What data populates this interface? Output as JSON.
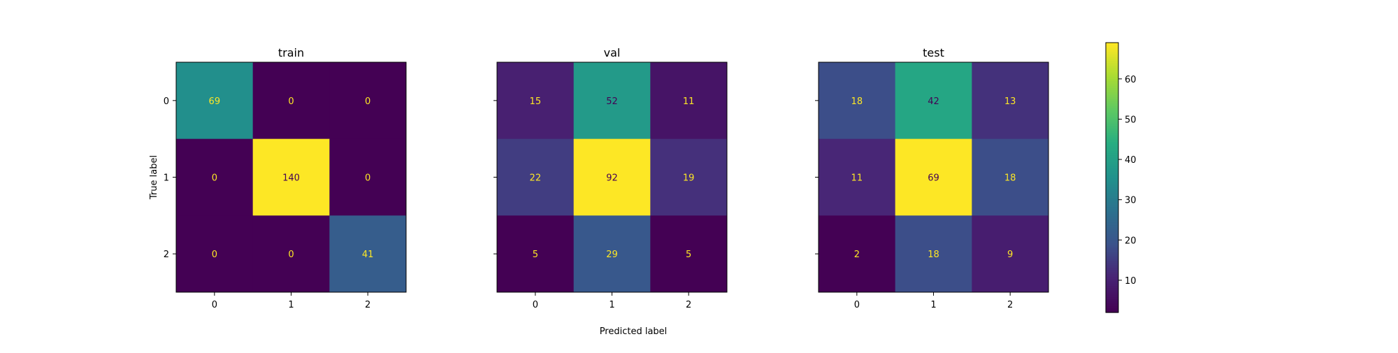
{
  "chart_data": {
    "type": "heatmap",
    "xlabel": "Predicted label",
    "ylabel": "True label",
    "tick_labels": [
      "0",
      "1",
      "2"
    ],
    "colormap": "viridis",
    "colorbar": {
      "min": 2,
      "max": 140,
      "ticks": [
        "10",
        "20",
        "30",
        "40",
        "50",
        "60"
      ],
      "tick_values": [
        10,
        20,
        30,
        40,
        50,
        60
      ]
    },
    "panels": [
      {
        "title": "train",
        "matrix": [
          [
            69,
            0,
            0
          ],
          [
            0,
            140,
            0
          ],
          [
            0,
            0,
            41
          ]
        ]
      },
      {
        "title": "val",
        "matrix": [
          [
            15,
            52,
            11
          ],
          [
            22,
            92,
            19
          ],
          [
            5,
            29,
            5
          ]
        ]
      },
      {
        "title": "test",
        "matrix": [
          [
            18,
            42,
            13
          ],
          [
            11,
            69,
            18
          ],
          [
            2,
            18,
            9
          ]
        ]
      }
    ]
  }
}
